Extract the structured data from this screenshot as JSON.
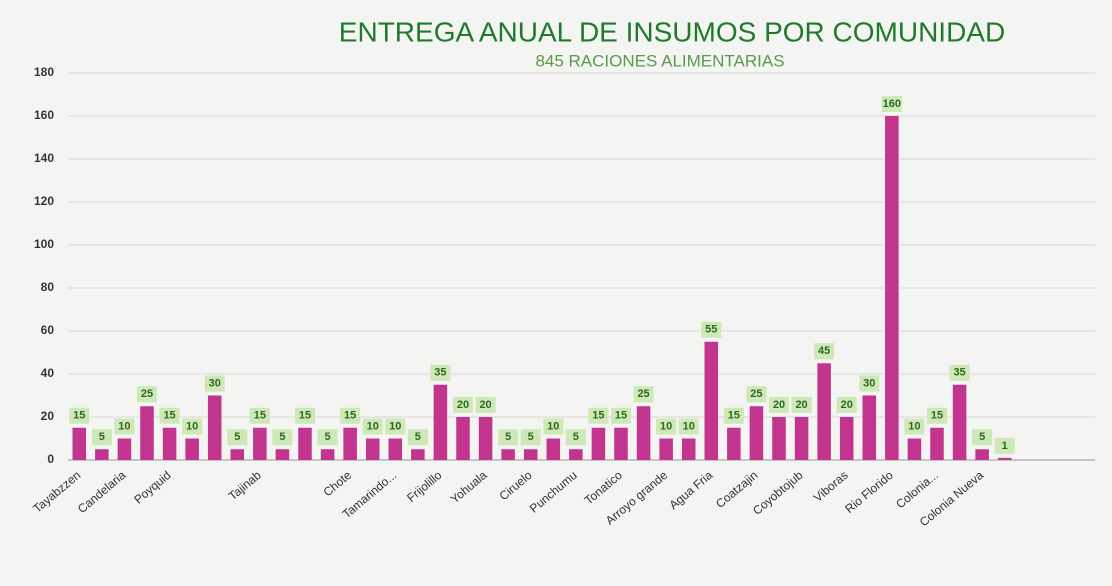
{
  "chart_data": {
    "type": "bar",
    "title": "ENTREGA ANUAL DE INSUMOS POR COMUNIDAD",
    "subtitle": "845 RACIONES ALIMENTARIAS",
    "categories": [
      "Tayabzzen",
      null,
      "Candelaria",
      null,
      "Poyquid",
      null,
      null,
      null,
      "Tajinab",
      null,
      null,
      null,
      "Chote",
      null,
      "Tamarindo...",
      null,
      "Frijolillo",
      null,
      "Yohuala",
      null,
      "Ciruelo",
      null,
      "Punchumu",
      null,
      "Tonatico",
      null,
      "Arroyo grande",
      null,
      "Agua Fria",
      null,
      "Coatzajin",
      null,
      "Coyobtojub",
      null,
      "Viboras",
      null,
      "Rio Florido",
      null,
      "Colonia...",
      null,
      "Colonia Nueva",
      null
    ],
    "values": [
      15,
      5,
      10,
      25,
      15,
      10,
      30,
      5,
      15,
      5,
      15,
      5,
      15,
      10,
      10,
      5,
      35,
      20,
      20,
      5,
      5,
      10,
      5,
      15,
      15,
      25,
      10,
      10,
      55,
      15,
      25,
      20,
      20,
      45,
      20,
      30,
      160,
      10,
      15,
      35,
      5,
      1
    ],
    "color": "#c2358f",
    "ylim": [
      0,
      180
    ],
    "yticks": [
      0,
      20,
      40,
      60,
      80,
      100,
      120,
      140,
      160,
      180
    ],
    "grid": true
  }
}
